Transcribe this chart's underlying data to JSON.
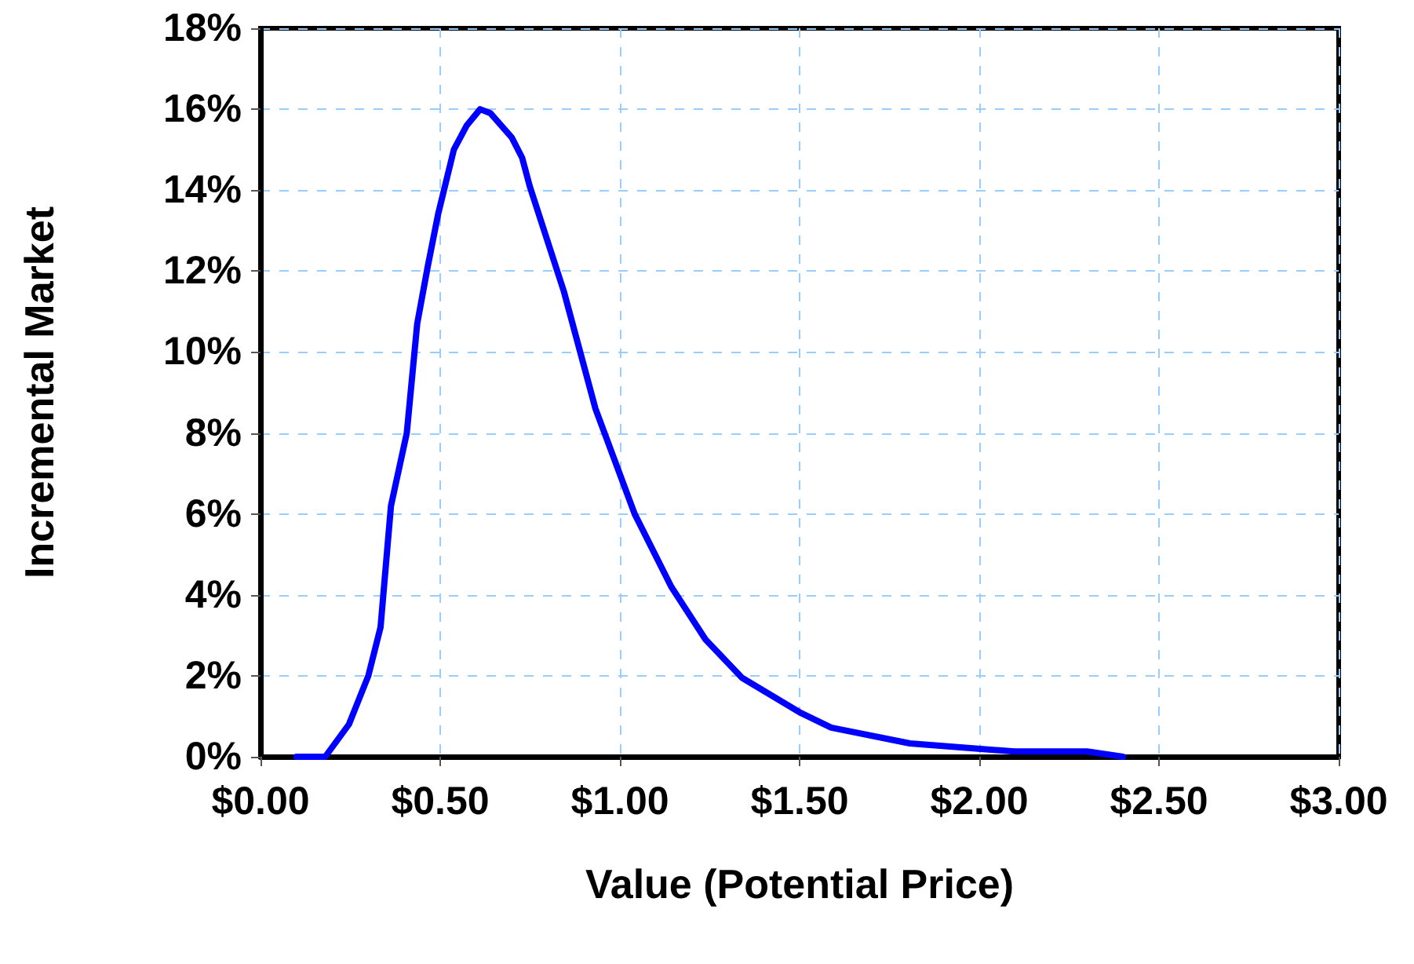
{
  "chart_data": {
    "type": "line",
    "xlabel": "Value (Potential Price)",
    "ylabel": "Incremental Market",
    "series": [
      {
        "color": "#0000ff",
        "x": [
          0.1,
          0.18,
          0.246,
          0.3,
          0.334,
          0.363,
          0.407,
          0.436,
          0.465,
          0.494,
          0.538,
          0.574,
          0.611,
          0.64,
          0.699,
          0.728,
          0.749,
          0.844,
          0.932,
          1.041,
          1.143,
          1.238,
          1.34,
          1.5,
          1.588,
          1.807,
          2.098,
          2.3,
          2.4
        ],
        "values": [
          0,
          0,
          0.8,
          2.0,
          3.2,
          6.2,
          8.0,
          10.7,
          12.1,
          13.4,
          15.0,
          15.6,
          16.0,
          15.9,
          15.3,
          14.8,
          14.1,
          11.5,
          8.6,
          6.0,
          4.2,
          2.9,
          1.95,
          1.1,
          0.72,
          0.33,
          0.13,
          0.13,
          0
        ]
      }
    ],
    "xlim": [
      0,
      3
    ],
    "xticks": [
      {
        "value": 0,
        "label": "$0.00"
      },
      {
        "value": 0.5,
        "label": "$0.50"
      },
      {
        "value": 1,
        "label": "$1.00"
      },
      {
        "value": 1.5,
        "label": "$1.50"
      },
      {
        "value": 2,
        "label": "$2.00"
      },
      {
        "value": 2.5,
        "label": "$2.50"
      },
      {
        "value": 3,
        "label": "$3.00"
      }
    ],
    "ylim": [
      0,
      18
    ],
    "yticks": [
      {
        "value": 0,
        "label": "0%"
      },
      {
        "value": 2,
        "label": "2%"
      },
      {
        "value": 4,
        "label": "4%"
      },
      {
        "value": 6,
        "label": "6%"
      },
      {
        "value": 8,
        "label": "8%"
      },
      {
        "value": 10,
        "label": "10%"
      },
      {
        "value": 12,
        "label": "12%"
      },
      {
        "value": 14,
        "label": "14%"
      },
      {
        "value": 16,
        "label": "16%"
      },
      {
        "value": 18,
        "label": "18%"
      }
    ],
    "grid": true,
    "marker": "none",
    "line_style": "solid"
  }
}
